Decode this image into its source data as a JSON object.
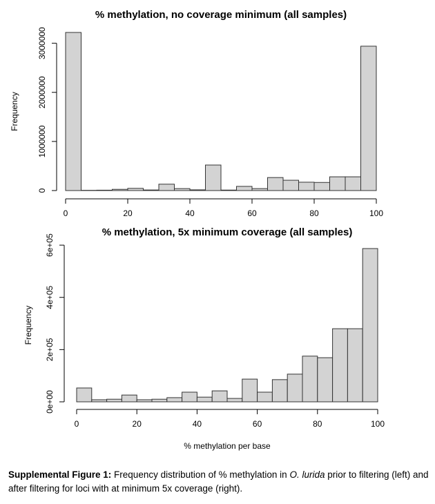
{
  "chart_data": [
    {
      "type": "histogram",
      "title": "% methylation, no coverage minimum (all samples)",
      "ylabel": "Frequency",
      "bins": [
        0,
        5,
        10,
        15,
        20,
        25,
        30,
        35,
        40,
        45,
        50,
        55,
        60,
        65,
        70,
        75,
        80,
        85,
        90,
        95,
        100
      ],
      "values": [
        3220000,
        5000,
        8000,
        25000,
        45000,
        12000,
        130000,
        40000,
        15000,
        520000,
        10000,
        85000,
        40000,
        265000,
        210000,
        170000,
        165000,
        280000,
        280000,
        2940000
      ],
      "color": "#d3d3d3",
      "xlim": [
        0,
        100
      ],
      "xticks": [
        0,
        20,
        40,
        60,
        80,
        100
      ],
      "ylim": [
        0,
        3220000
      ],
      "yticks": [
        0,
        1000000,
        2000000,
        3000000
      ]
    },
    {
      "type": "histogram",
      "title": "% methylation, 5x minimum coverage (all samples)",
      "xlabel": "% methylation per base",
      "ylabel": "Frequency",
      "bins": [
        0,
        5,
        10,
        15,
        20,
        25,
        30,
        35,
        40,
        45,
        50,
        55,
        60,
        65,
        70,
        75,
        80,
        85,
        90,
        95,
        100
      ],
      "values": [
        53000,
        8000,
        10000,
        26000,
        8000,
        10000,
        16000,
        37000,
        18000,
        42000,
        13000,
        87000,
        37000,
        85000,
        106000,
        175000,
        169000,
        280000,
        280000,
        587000
      ],
      "color": "#d3d3d3",
      "xlim": [
        0,
        100
      ],
      "xticks": [
        0,
        20,
        40,
        60,
        80,
        100
      ],
      "ylim": [
        0,
        587000
      ],
      "yticks": [
        {
          "value": 0,
          "label": "0e+00"
        },
        {
          "value": 200000,
          "label": "2e+05"
        },
        {
          "value": 400000,
          "label": "4e+05"
        },
        {
          "value": 600000,
          "label": "6e+05"
        }
      ]
    }
  ],
  "caption": {
    "label": "Supplemental Figure 1:",
    "text_1": "Frequency distribution of % methylation in",
    "species": "O. lurida",
    "text_2": "prior to filtering (left) and after filtering for loci with at minimum 5x coverage (right)."
  }
}
